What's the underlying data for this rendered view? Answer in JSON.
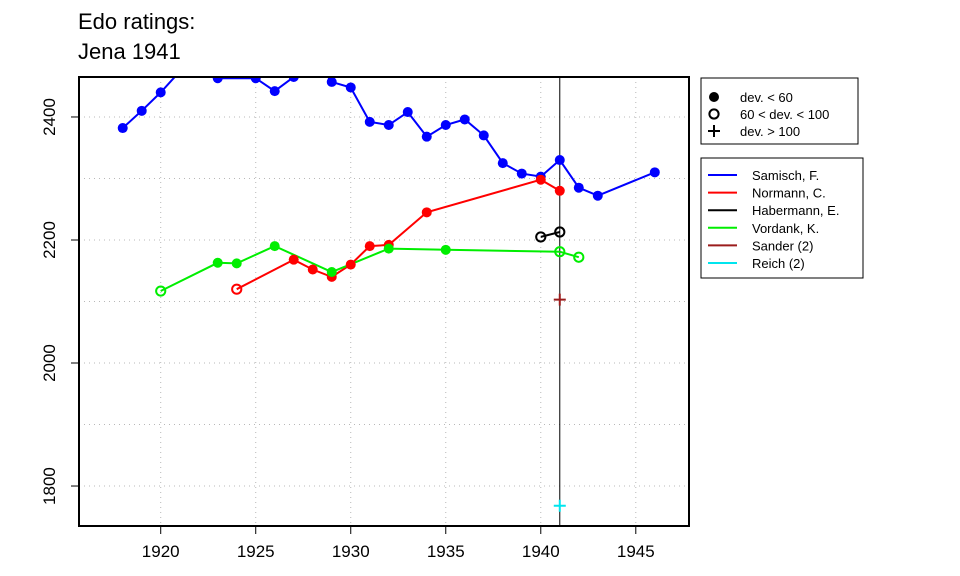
{
  "title_lines": [
    "Edo ratings:",
    "Jena 1941"
  ],
  "chart_data": {
    "type": "line",
    "title": "Edo ratings: Jena 1941",
    "xlabel": "",
    "ylabel": "",
    "xlim": [
      1915.7,
      1947.8
    ],
    "ylim": [
      1735,
      2465
    ],
    "x_ticks": [
      1920,
      1925,
      1930,
      1935,
      1940,
      1945
    ],
    "y_ticks": [
      1800,
      2000,
      2200,
      2400
    ],
    "grid": true,
    "reference_line_x": 1941,
    "marker_legend": {
      "placement": "top-right",
      "entries": [
        {
          "marker": "filled",
          "label": "dev. < 60"
        },
        {
          "marker": "open",
          "label": "60 < dev. < 100"
        },
        {
          "marker": "plus",
          "label": "dev. > 100"
        }
      ]
    },
    "legend_placement": "right",
    "series": [
      {
        "name": "Samisch, F.",
        "color": "#0000ff",
        "points": [
          {
            "x": 1918,
            "y": 2382,
            "m": "filled"
          },
          {
            "x": 1919,
            "y": 2410,
            "m": "filled"
          },
          {
            "x": 1920,
            "y": 2440,
            "m": "filled"
          },
          {
            "x": 1921,
            "y": 2474,
            "m": "filled"
          },
          {
            "x": 1922,
            "y": 2482,
            "m": "filled"
          },
          {
            "x": 1923,
            "y": 2463,
            "m": "filled"
          },
          {
            "x": 1925,
            "y": 2463,
            "m": "filled"
          },
          {
            "x": 1926,
            "y": 2442,
            "m": "filled"
          },
          {
            "x": 1927,
            "y": 2465,
            "m": "filled"
          },
          {
            "x": 1928,
            "y": 2500,
            "m": "filled"
          },
          {
            "x": 1929,
            "y": 2457,
            "m": "filled"
          },
          {
            "x": 1930,
            "y": 2448,
            "m": "filled"
          },
          {
            "x": 1931,
            "y": 2392,
            "m": "filled"
          },
          {
            "x": 1932,
            "y": 2387,
            "m": "filled"
          },
          {
            "x": 1933,
            "y": 2408,
            "m": "filled"
          },
          {
            "x": 1934,
            "y": 2368,
            "m": "filled"
          },
          {
            "x": 1935,
            "y": 2387,
            "m": "filled"
          },
          {
            "x": 1936,
            "y": 2396,
            "m": "filled"
          },
          {
            "x": 1937,
            "y": 2370,
            "m": "filled"
          },
          {
            "x": 1938,
            "y": 2325,
            "m": "filled"
          },
          {
            "x": 1939,
            "y": 2308,
            "m": "filled"
          },
          {
            "x": 1940,
            "y": 2303,
            "m": "filled"
          },
          {
            "x": 1941,
            "y": 2330,
            "m": "filled"
          },
          {
            "x": 1942,
            "y": 2285,
            "m": "filled"
          },
          {
            "x": 1943,
            "y": 2272,
            "m": "filled"
          },
          {
            "x": 1946,
            "y": 2310,
            "m": "filled"
          }
        ]
      },
      {
        "name": "Normann, C.",
        "color": "#ff0000",
        "points": [
          {
            "x": 1924,
            "y": 2120,
            "m": "open"
          },
          {
            "x": 1927,
            "y": 2168,
            "m": "filled"
          },
          {
            "x": 1928,
            "y": 2152,
            "m": "filled"
          },
          {
            "x": 1929,
            "y": 2140,
            "m": "filled"
          },
          {
            "x": 1930,
            "y": 2160,
            "m": "filled"
          },
          {
            "x": 1931,
            "y": 2190,
            "m": "filled"
          },
          {
            "x": 1932,
            "y": 2192,
            "m": "filled"
          },
          {
            "x": 1934,
            "y": 2245,
            "m": "filled"
          },
          {
            "x": 1940,
            "y": 2298,
            "m": "filled"
          },
          {
            "x": 1941,
            "y": 2280,
            "m": "filled"
          }
        ]
      },
      {
        "name": "Habermann, E.",
        "color": "#000000",
        "points": [
          {
            "x": 1940,
            "y": 2205,
            "m": "open"
          },
          {
            "x": 1941,
            "y": 2213,
            "m": "open"
          }
        ]
      },
      {
        "name": "Vordank, K.",
        "color": "#00ee00",
        "points": [
          {
            "x": 1920,
            "y": 2117,
            "m": "open"
          },
          {
            "x": 1923,
            "y": 2163,
            "m": "filled"
          },
          {
            "x": 1924,
            "y": 2162,
            "m": "filled"
          },
          {
            "x": 1926,
            "y": 2190,
            "m": "filled"
          },
          {
            "x": 1929,
            "y": 2148,
            "m": "filled"
          },
          {
            "x": 1932,
            "y": 2186,
            "m": "filled"
          },
          {
            "x": 1935,
            "y": 2184,
            "m": "filled"
          },
          {
            "x": 1941,
            "y": 2181,
            "m": "open"
          },
          {
            "x": 1942,
            "y": 2172,
            "m": "open"
          }
        ]
      },
      {
        "name": "Sander (2)",
        "color": "#9b1c1c",
        "points": [
          {
            "x": 1941,
            "y": 2103,
            "m": "plus"
          }
        ]
      },
      {
        "name": "Reich (2)",
        "color": "#00e5ee",
        "points": [
          {
            "x": 1941,
            "y": 1768,
            "m": "plus"
          }
        ]
      }
    ]
  }
}
